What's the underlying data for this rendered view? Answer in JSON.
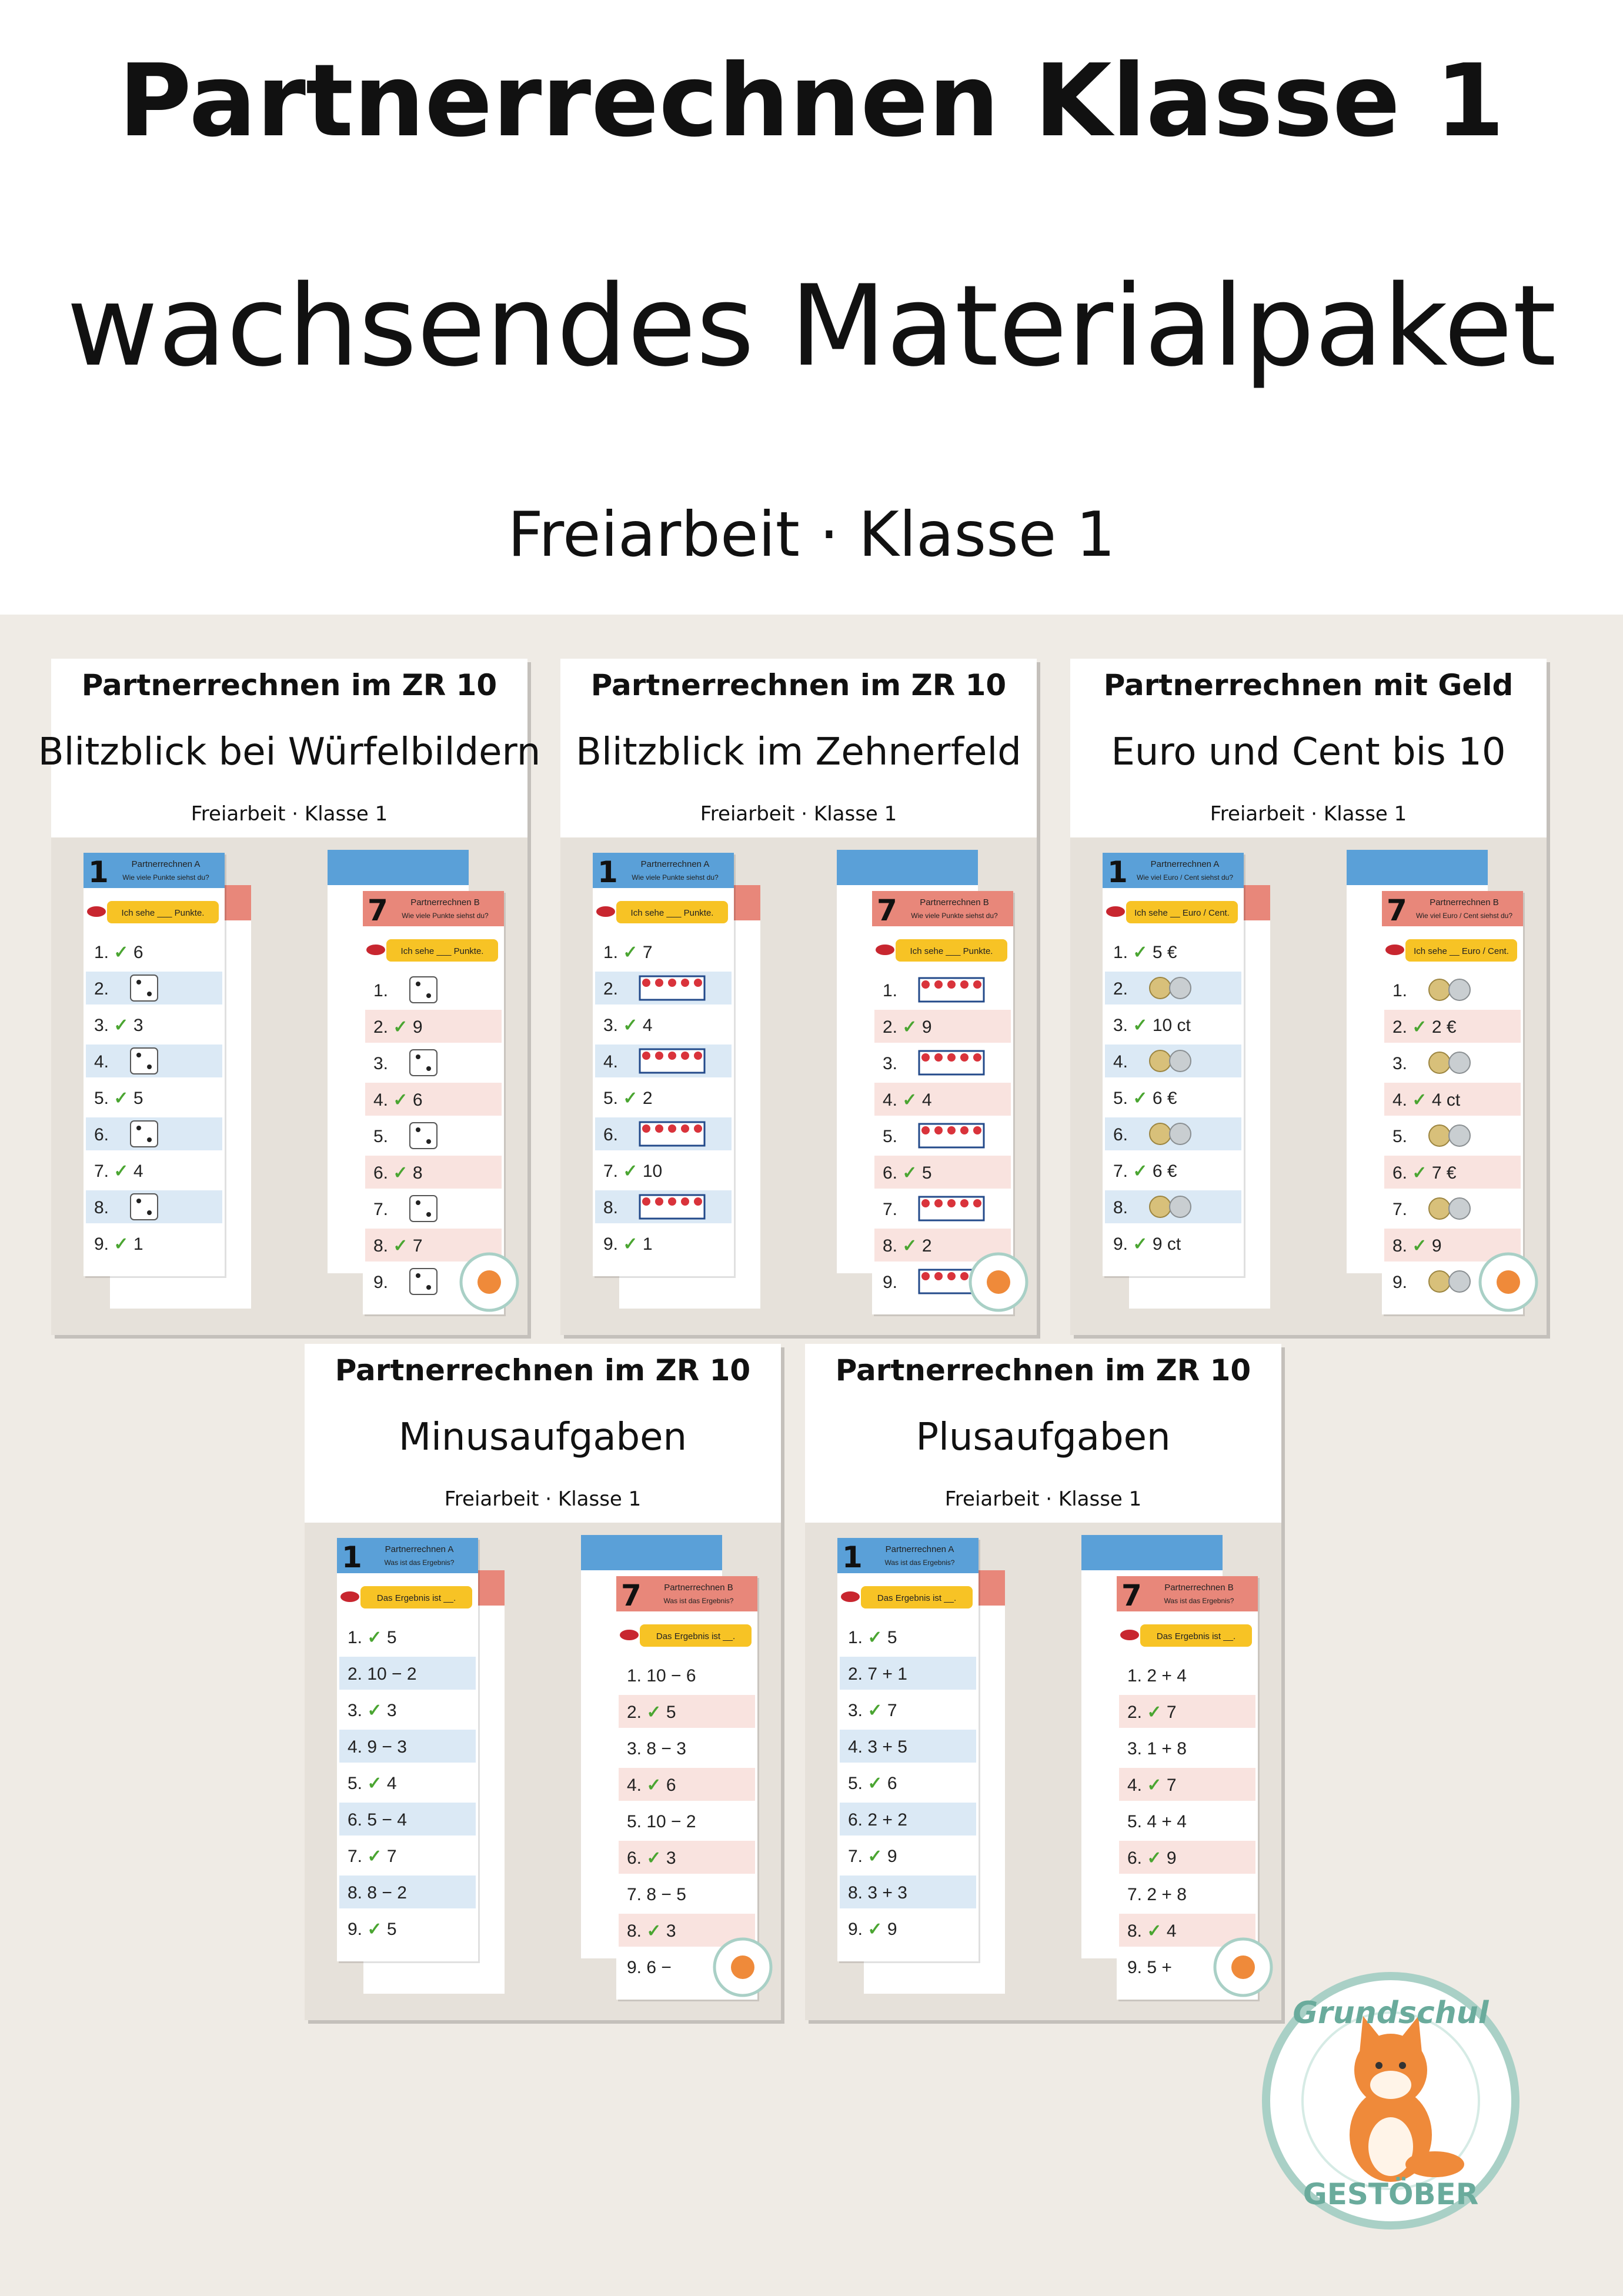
{
  "header": {
    "title": "Partnerrechnen Klasse 1",
    "subtitle": "wachsendes Materialpaket",
    "tagline": "Freiarbeit · Klasse 1"
  },
  "cards": [
    {
      "title": "Partnerrechnen im ZR 10",
      "subtitle": "Blitzblick bei Würfelbildern",
      "tagline": "Freiarbeit · Klasse 1",
      "icon": "dice",
      "sheets": [
        {
          "number": "1",
          "title": "Partnerrechnen A",
          "question": "Wie viele Punkte siehst du?",
          "prompt": "Ich sehe ___ Punkte.",
          "rows": [
            "1. ✓ 6",
            "2.",
            "3. ✓ 3",
            "4.",
            "5. ✓ 5",
            "6.",
            "7. ✓ 4",
            "8.",
            "9. ✓ 1"
          ]
        },
        {
          "number": "7",
          "title": "Partnerrechnen B",
          "question": "Wie viele Punkte siehst du?",
          "prompt": "Ich sehe ___ Punkte.",
          "rows": [
            "1.",
            "2. ✓ 9",
            "3.",
            "4. ✓ 6",
            "5.",
            "6. ✓ 8",
            "7.",
            "8. ✓ 7",
            "9."
          ]
        }
      ]
    },
    {
      "title": "Partnerrechnen im ZR 10",
      "subtitle": "Blitzblick im Zehnerfeld",
      "tagline": "Freiarbeit · Klasse 1",
      "icon": "tenframe",
      "sheets": [
        {
          "number": "1",
          "title": "Partnerrechnen A",
          "question": "Wie viele Punkte siehst du?",
          "prompt": "Ich sehe ___ Punkte.",
          "rows": [
            "1. ✓ 7",
            "2.",
            "3. ✓ 4",
            "4.",
            "5. ✓ 2",
            "6.",
            "7. ✓ 10",
            "8.",
            "9. ✓ 1"
          ]
        },
        {
          "number": "7",
          "title": "Partnerrechnen B",
          "question": "Wie viele Punkte siehst du?",
          "prompt": "Ich sehe ___ Punkte.",
          "rows": [
            "1.",
            "2. ✓ 9",
            "3.",
            "4. ✓ 4",
            "5.",
            "6. ✓ 5",
            "7.",
            "8. ✓ 2",
            "9."
          ]
        }
      ]
    },
    {
      "title": "Partnerrechnen mit Geld",
      "subtitle": "Euro und Cent bis 10",
      "tagline": "Freiarbeit · Klasse 1",
      "icon": "coins",
      "sheets": [
        {
          "number": "1",
          "title": "Partnerrechnen A",
          "question": "Wie viel Euro / Cent siehst du?",
          "prompt": "Ich sehe __ Euro / Cent.",
          "rows": [
            "1. ✓ 5 €",
            "2.",
            "3. ✓ 10 ct",
            "4.",
            "5. ✓ 6 €",
            "6.",
            "7. ✓ 6 €",
            "8.",
            "9. ✓ 9 ct"
          ]
        },
        {
          "number": "7",
          "title": "Partnerrechnen B",
          "question": "Wie viel Euro / Cent siehst du?",
          "prompt": "Ich sehe __ Euro / Cent.",
          "rows": [
            "1.",
            "2. ✓ 2 €",
            "3.",
            "4. ✓ 4 ct",
            "5.",
            "6. ✓ 7 €",
            "7.",
            "8. ✓ 9",
            "9."
          ]
        }
      ]
    },
    {
      "title": "Partnerrechnen im ZR 10",
      "subtitle": "Minusaufgaben",
      "tagline": "Freiarbeit · Klasse 1",
      "icon": "none",
      "sheets": [
        {
          "number": "1",
          "title": "Partnerrechnen A",
          "question": "Was ist das Ergebnis?",
          "prompt": "Das Ergebnis ist __.",
          "rows": [
            "1. ✓ 5",
            "2. 10 − 2",
            "3. ✓ 3",
            "4. 9 − 3",
            "5. ✓ 4",
            "6. 5 − 4",
            "7. ✓ 7",
            "8. 8 − 2",
            "9. ✓ 5"
          ]
        },
        {
          "number": "7",
          "title": "Partnerrechnen B",
          "question": "Was ist das Ergebnis?",
          "prompt": "Das Ergebnis ist __.",
          "rows": [
            "1. 10 − 6",
            "2. ✓ 5",
            "3. 8 − 3",
            "4. ✓ 6",
            "5. 10 − 2",
            "6. ✓ 3",
            "7. 8 − 5",
            "8. ✓ 3",
            "9. 6 −"
          ]
        }
      ]
    },
    {
      "title": "Partnerrechnen im ZR 10",
      "subtitle": "Plusaufgaben",
      "tagline": "Freiarbeit · Klasse 1",
      "icon": "none",
      "sheets": [
        {
          "number": "1",
          "title": "Partnerrechnen A",
          "question": "Was ist das Ergebnis?",
          "prompt": "Das Ergebnis ist __.",
          "rows": [
            "1. ✓ 5",
            "2. 7 + 1",
            "3. ✓ 7",
            "4. 3 + 5",
            "5. ✓ 6",
            "6. 2 + 2",
            "7. ✓ 9",
            "8. 3 + 3",
            "9. ✓ 9"
          ]
        },
        {
          "number": "7",
          "title": "Partnerrechnen B",
          "question": "Was ist das Ergebnis?",
          "prompt": "Das Ergebnis ist __.",
          "rows": [
            "1. 2 + 4",
            "2. ✓ 7",
            "3. 1 + 8",
            "4. ✓ 7",
            "5. 4 + 4",
            "6. ✓ 9",
            "7. 2 + 8",
            "8. ✓ 4",
            "9. 5 +"
          ]
        }
      ]
    }
  ],
  "logo": {
    "top": "Grundschul",
    "bottom": "GESTÖBER"
  }
}
